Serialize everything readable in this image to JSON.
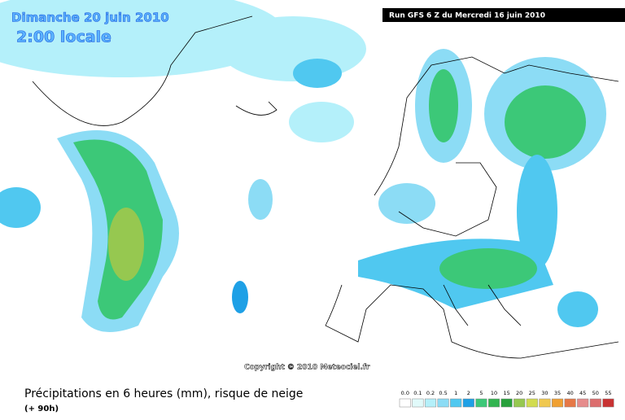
{
  "header": {
    "date": "Dimanche 20 juin 2010",
    "time": "2:00 locale",
    "run": "Run GFS 6 Z du Mercredi 16 juin 2010"
  },
  "copyright": "Copyright © 2010 Meteociel.fr",
  "caption": {
    "title": "Précipitations en 6 heures (mm), risque de neige",
    "lead": "(+ 90h)"
  },
  "legend": [
    {
      "label": "0.0",
      "color": "#ffffff"
    },
    {
      "label": "0.1",
      "color": "#e1fafa"
    },
    {
      "label": "0.2",
      "color": "#b4f0fa"
    },
    {
      "label": "0.5",
      "color": "#8cdcf5"
    },
    {
      "label": "1",
      "color": "#50c8f0"
    },
    {
      "label": "2",
      "color": "#1ea0e6"
    },
    {
      "label": "5",
      "color": "#3cc878"
    },
    {
      "label": "10",
      "color": "#32b450"
    },
    {
      "label": "15",
      "color": "#28a03c"
    },
    {
      "label": "20",
      "color": "#96c850"
    },
    {
      "label": "25",
      "color": "#d2dc50"
    },
    {
      "label": "30",
      "color": "#f0c850"
    },
    {
      "label": "35",
      "color": "#f0a032"
    },
    {
      "label": "40",
      "color": "#e67846"
    },
    {
      "label": "45",
      "color": "#e68c8c"
    },
    {
      "label": "50",
      "color": "#dc6e6e"
    },
    {
      "label": "55",
      "color": "#c83232"
    }
  ]
}
